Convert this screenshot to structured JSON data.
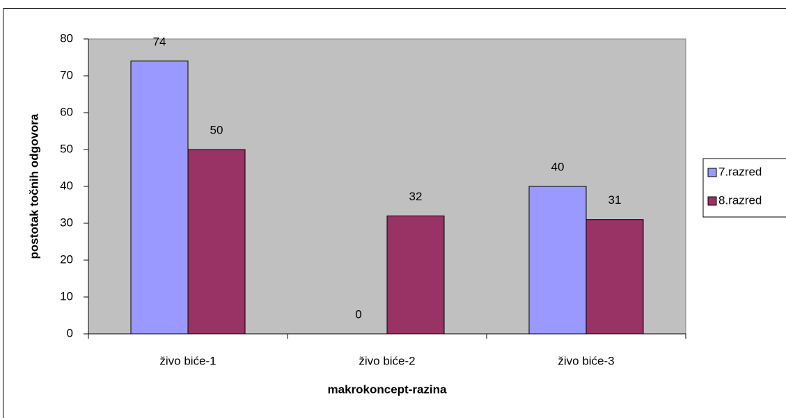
{
  "chart_data": {
    "type": "bar",
    "xlabel": "makrokoncept-razina",
    "ylabel": "postotak točnih odgovora",
    "categories": [
      "živo biće-1",
      "živo biće-2",
      "živo biće-3"
    ],
    "series": [
      {
        "name": "7.razred",
        "color": "#9999ff",
        "values": [
          74,
          0,
          40
        ]
      },
      {
        "name": "8.razred",
        "color": "#993366",
        "values": [
          50,
          32,
          31
        ]
      }
    ],
    "ylim": [
      0,
      80
    ],
    "yticks": [
      0,
      10,
      20,
      30,
      40,
      50,
      60,
      70,
      80
    ],
    "grid": false,
    "legend": "right",
    "plot_background": "#c0c0c0"
  }
}
